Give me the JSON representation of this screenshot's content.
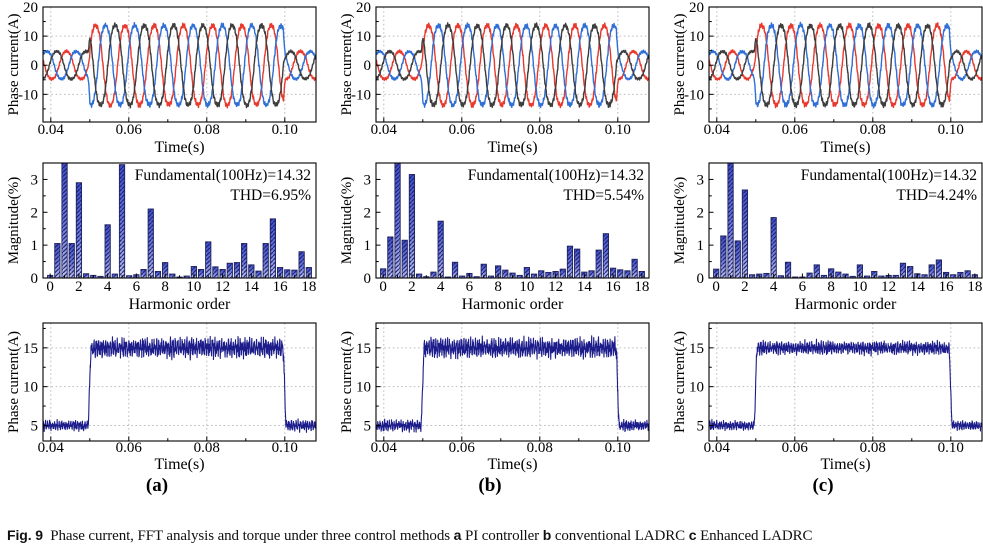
{
  "caption": {
    "segments": [
      {
        "text": "Fig. 9",
        "bold": true
      },
      {
        "text": "  Phase current, FFT analysis and torque under three control methods ",
        "bold": false
      },
      {
        "text": "a",
        "bold": true
      },
      {
        "text": " PI controller ",
        "bold": false
      },
      {
        "text": "b",
        "bold": true
      },
      {
        "text": " conventional LADRC ",
        "bold": false
      },
      {
        "text": "c",
        "bold": true
      },
      {
        "text": " Enhanced LADRC",
        "bold": false
      }
    ]
  },
  "columns": [
    {
      "panel_label": "(a)",
      "method": "PI controller"
    },
    {
      "panel_label": "(b)",
      "method": "conventional LADRC"
    },
    {
      "panel_label": "(c)",
      "method": "Enhanced LADRC"
    }
  ],
  "styles": {
    "phase_colors": [
      "#e8392f",
      "#2f6fd6",
      "#3d3d3d"
    ],
    "step_color": "#1c1c8a",
    "bar_gradient_top": "#3d50d2",
    "bar_gradient_mid": "#6d7de4",
    "bar_gradient_bottom": "#bcc5f5",
    "bar_hatch": "#1c1c5e",
    "bar_edge": "#23245e",
    "grid_color": "#bcbcbc",
    "axis_color": "#000000"
  },
  "chart_data": [
    {
      "id": "phase-current-a",
      "row": 0,
      "col": 0,
      "type": "line",
      "grid": true,
      "xlabel": "Time(s)",
      "ylabel": "Phase current(A)",
      "xlim": [
        0.038,
        0.108
      ],
      "ylim": [
        -19.5,
        20
      ],
      "xticks": [
        0.04,
        0.06,
        0.08,
        0.1
      ],
      "xtick_labels": [
        "0.04",
        "0.06",
        "0.08",
        "0.10"
      ],
      "yticks": [
        -10,
        0,
        10,
        20
      ],
      "signal": {
        "kind": "three_phase_sine",
        "frequency_hz": 133.3,
        "amp_low_A": 5.0,
        "amp_high_A": 14.4,
        "load_step_on_s": 0.0495,
        "load_step_off_s": 0.0995,
        "seed": 11,
        "phases": [
          {
            "name": "phase-A",
            "color_index": 0,
            "phase_rad": 2.41
          },
          {
            "name": "phase-B",
            "color_index": 1,
            "phase_rad": 0.32
          },
          {
            "name": "phase-C",
            "color_index": 2,
            "phase_rad": -1.78
          }
        ]
      }
    },
    {
      "id": "fft-a",
      "row": 1,
      "col": 0,
      "type": "bar",
      "grid": false,
      "xlabel": "Harmonic order",
      "ylabel": "Magnitude(%)",
      "xlim": [
        -0.5,
        18.5
      ],
      "ylim": [
        0,
        3.5
      ],
      "xticks": [
        0,
        2,
        4,
        6,
        8,
        10,
        12,
        14,
        16,
        18
      ],
      "yticks": [
        0,
        1,
        2,
        3
      ],
      "annotations": [
        "Fundamental(100Hz)=14.32",
        "THD=6.95%"
      ],
      "fundamental_hz": 100,
      "fundamental_A": 14.32,
      "thd_percent": 6.95,
      "harmonic_x_step": 0.5,
      "values": [
        0.08,
        1.05,
        3.72,
        1.05,
        2.9,
        0.13,
        0.08,
        0.05,
        1.62,
        0.12,
        3.45,
        0.07,
        0.1,
        0.26,
        2.1,
        0.2,
        0.47,
        0.12,
        0.03,
        0.06,
        0.35,
        0.26,
        1.1,
        0.34,
        0.26,
        0.45,
        0.47,
        1.05,
        0.4,
        0.21,
        1.05,
        1.8,
        0.32,
        0.25,
        0.24,
        0.8,
        0.32
      ]
    },
    {
      "id": "current-step-a",
      "row": 2,
      "col": 0,
      "type": "line",
      "grid": true,
      "panel_index": 0,
      "xlabel": "Time(s)",
      "ylabel": "Phase current(A)",
      "xlim": [
        0.038,
        0.108
      ],
      "ylim": [
        3,
        18.2
      ],
      "xticks": [
        0.04,
        0.06,
        0.08,
        0.1
      ],
      "xtick_labels": [
        "0.04",
        "0.06",
        "0.08",
        "0.10"
      ],
      "yticks": [
        5,
        10,
        15
      ],
      "signal": {
        "kind": "noisy_step",
        "level_low_A": 5,
        "level_high_A": 15,
        "step_on_s": 0.0495,
        "step_off_s": 0.0995,
        "noise_high": 1.35,
        "noise_low": 0.75,
        "seed": 21
      }
    },
    {
      "id": "phase-current-b",
      "row": 0,
      "col": 1,
      "type": "line",
      "grid": true,
      "xlabel": "Time(s)",
      "ylabel": "Phase current(A)",
      "xlim": [
        0.038,
        0.108
      ],
      "ylim": [
        -19.5,
        20
      ],
      "xticks": [
        0.04,
        0.06,
        0.08,
        0.1
      ],
      "xtick_labels": [
        "0.04",
        "0.06",
        "0.08",
        "0.10"
      ],
      "yticks": [
        -10,
        0,
        10,
        20
      ],
      "signal": {
        "kind": "three_phase_sine",
        "frequency_hz": 133.3,
        "amp_low_A": 5.0,
        "amp_high_A": 14.4,
        "load_step_on_s": 0.0495,
        "load_step_off_s": 0.0995,
        "seed": 12,
        "phases": [
          {
            "name": "phase-A",
            "color_index": 0,
            "phase_rad": 2.41
          },
          {
            "name": "phase-B",
            "color_index": 1,
            "phase_rad": 0.32
          },
          {
            "name": "phase-C",
            "color_index": 2,
            "phase_rad": -1.78
          }
        ]
      }
    },
    {
      "id": "fft-b",
      "row": 1,
      "col": 1,
      "type": "bar",
      "grid": false,
      "xlabel": "Harmonic order",
      "ylabel": "Magnitude(%)",
      "xlim": [
        -0.5,
        18.5
      ],
      "ylim": [
        0,
        3.5
      ],
      "xticks": [
        0,
        2,
        4,
        6,
        8,
        10,
        12,
        14,
        16,
        18
      ],
      "yticks": [
        0,
        1,
        2,
        3
      ],
      "annotations": [
        "Fundamental(100Hz)=14.32",
        "THD=5.54%"
      ],
      "fundamental_hz": 100,
      "fundamental_A": 14.32,
      "thd_percent": 5.54,
      "harmonic_x_step": 0.5,
      "values": [
        0.28,
        1.25,
        3.72,
        1.15,
        3.15,
        0.12,
        0.04,
        0.18,
        1.73,
        0.03,
        0.48,
        0.06,
        0.14,
        0.04,
        0.42,
        0.06,
        0.37,
        0.24,
        0.15,
        0.08,
        0.32,
        0.12,
        0.22,
        0.17,
        0.2,
        0.27,
        0.97,
        0.88,
        0.18,
        0.22,
        0.85,
        1.35,
        0.3,
        0.25,
        0.22,
        0.57,
        0.2
      ]
    },
    {
      "id": "current-step-b",
      "row": 2,
      "col": 1,
      "type": "line",
      "grid": true,
      "panel_index": 1,
      "xlabel": "Time(s)",
      "ylabel": "Phase current(A)",
      "xlim": [
        0.038,
        0.108
      ],
      "ylim": [
        3,
        18.2
      ],
      "xticks": [
        0.04,
        0.06,
        0.08,
        0.1
      ],
      "xtick_labels": [
        "0.04",
        "0.06",
        "0.08",
        "0.10"
      ],
      "yticks": [
        5,
        10,
        15
      ],
      "signal": {
        "kind": "noisy_step",
        "level_low_A": 5,
        "level_high_A": 15,
        "step_on_s": 0.0495,
        "step_off_s": 0.0995,
        "noise_high": 1.35,
        "noise_low": 0.75,
        "seed": 22
      }
    },
    {
      "id": "phase-current-c",
      "row": 0,
      "col": 2,
      "type": "line",
      "grid": true,
      "xlabel": "Time(s)",
      "ylabel": "Phase current(A)",
      "xlim": [
        0.038,
        0.108
      ],
      "ylim": [
        -19.5,
        20
      ],
      "xticks": [
        0.04,
        0.06,
        0.08,
        0.1
      ],
      "xtick_labels": [
        "0.04",
        "0.06",
        "0.08",
        "0.10"
      ],
      "yticks": [
        -10,
        0,
        10,
        20
      ],
      "signal": {
        "kind": "three_phase_sine",
        "frequency_hz": 133.3,
        "amp_low_A": 5.0,
        "amp_high_A": 14.4,
        "load_step_on_s": 0.0495,
        "load_step_off_s": 0.0995,
        "seed": 13,
        "phases": [
          {
            "name": "phase-A",
            "color_index": 0,
            "phase_rad": 2.41
          },
          {
            "name": "phase-B",
            "color_index": 1,
            "phase_rad": 0.32
          },
          {
            "name": "phase-C",
            "color_index": 2,
            "phase_rad": -1.78
          }
        ]
      }
    },
    {
      "id": "fft-c",
      "row": 1,
      "col": 2,
      "type": "bar",
      "grid": false,
      "xlabel": "Harmonic order",
      "ylabel": "Magnitude(%)",
      "xlim": [
        -0.5,
        18.5
      ],
      "ylim": [
        0,
        3.5
      ],
      "xticks": [
        0,
        2,
        4,
        6,
        8,
        10,
        12,
        14,
        16,
        18
      ],
      "yticks": [
        0,
        1,
        2,
        3
      ],
      "annotations": [
        "Fundamental(100Hz)=14.32",
        "THD=4.24%"
      ],
      "fundamental_hz": 100,
      "fundamental_A": 14.32,
      "thd_percent": 4.24,
      "harmonic_x_step": 0.5,
      "values": [
        0.27,
        1.28,
        3.72,
        1.13,
        2.68,
        0.1,
        0.12,
        0.14,
        1.84,
        0.07,
        0.48,
        0.03,
        0.03,
        0.15,
        0.4,
        0.08,
        0.28,
        0.18,
        0.12,
        0.05,
        0.4,
        0.06,
        0.2,
        0.06,
        0.08,
        0.08,
        0.45,
        0.35,
        0.13,
        0.1,
        0.4,
        0.55,
        0.17,
        0.1,
        0.17,
        0.22,
        0.1
      ]
    },
    {
      "id": "current-step-c",
      "row": 2,
      "col": 2,
      "type": "line",
      "grid": true,
      "panel_index": 2,
      "xlabel": "Time(s)",
      "ylabel": "Phase current(A)",
      "xlim": [
        0.038,
        0.108
      ],
      "ylim": [
        3,
        18.2
      ],
      "xticks": [
        0.04,
        0.06,
        0.08,
        0.1
      ],
      "xtick_labels": [
        "0.04",
        "0.06",
        "0.08",
        "0.10"
      ],
      "yticks": [
        5,
        10,
        15
      ],
      "signal": {
        "kind": "noisy_step",
        "level_low_A": 5,
        "level_high_A": 15,
        "step_on_s": 0.0495,
        "step_off_s": 0.0995,
        "noise_high": 0.9,
        "noise_low": 0.65,
        "seed": 23
      }
    }
  ]
}
